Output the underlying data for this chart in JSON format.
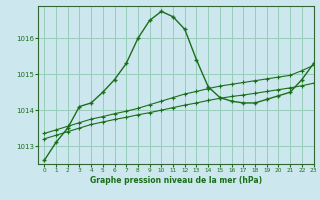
{
  "title": "Graphe pression niveau de la mer (hPa)",
  "bg_color": "#cce8ee",
  "grid_color": "#99ccbb",
  "line_color": "#1a6e1a",
  "spine_color": "#336633",
  "xlim": [
    -0.5,
    23
  ],
  "ylim": [
    1012.5,
    1016.9
  ],
  "yticks": [
    1013,
    1014,
    1015,
    1016
  ],
  "xticks": [
    0,
    1,
    2,
    3,
    4,
    5,
    6,
    7,
    8,
    9,
    10,
    11,
    12,
    13,
    14,
    15,
    16,
    17,
    18,
    19,
    20,
    21,
    22,
    23
  ],
  "series1": {
    "x": [
      0,
      1,
      2,
      3,
      4,
      5,
      6,
      7,
      8,
      9,
      10,
      11,
      12,
      13,
      14,
      15,
      16,
      17,
      18,
      19,
      20,
      21,
      22,
      23
    ],
    "y": [
      1012.6,
      1013.1,
      1013.5,
      1014.1,
      1014.2,
      1014.5,
      1014.85,
      1015.3,
      1016.0,
      1016.5,
      1016.75,
      1016.6,
      1016.25,
      1015.4,
      1014.65,
      1014.35,
      1014.25,
      1014.2,
      1014.2,
      1014.3,
      1014.4,
      1014.5,
      1014.85,
      1015.3
    ]
  },
  "series2": {
    "x": [
      0,
      1,
      2,
      3,
      4,
      5,
      6,
      7,
      8,
      9,
      10,
      11,
      12,
      13,
      14,
      15,
      16,
      17,
      18,
      19,
      20,
      21,
      22,
      23
    ],
    "y": [
      1013.35,
      1013.45,
      1013.55,
      1013.65,
      1013.75,
      1013.82,
      1013.9,
      1013.97,
      1014.05,
      1014.15,
      1014.25,
      1014.35,
      1014.45,
      1014.52,
      1014.6,
      1014.67,
      1014.72,
      1014.77,
      1014.82,
      1014.87,
      1014.92,
      1014.97,
      1015.1,
      1015.25
    ]
  },
  "series3": {
    "x": [
      0,
      1,
      2,
      3,
      4,
      5,
      6,
      7,
      8,
      9,
      10,
      11,
      12,
      13,
      14,
      15,
      16,
      17,
      18,
      19,
      20,
      21,
      22,
      23
    ],
    "y": [
      1013.2,
      1013.3,
      1013.4,
      1013.5,
      1013.6,
      1013.67,
      1013.74,
      1013.8,
      1013.87,
      1013.93,
      1014.0,
      1014.07,
      1014.14,
      1014.2,
      1014.27,
      1014.33,
      1014.38,
      1014.42,
      1014.47,
      1014.52,
      1014.57,
      1014.62,
      1014.68,
      1014.75
    ]
  }
}
